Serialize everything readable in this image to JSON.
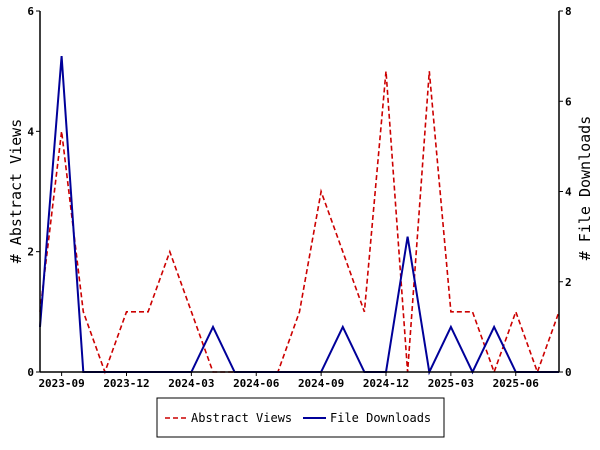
{
  "chart_data": {
    "type": "line",
    "x": [
      "2023-08",
      "2023-09",
      "2023-10",
      "2023-11",
      "2023-12",
      "2024-01",
      "2024-02",
      "2024-03",
      "2024-04",
      "2024-05",
      "2024-06",
      "2024-07",
      "2024-08",
      "2024-09",
      "2024-10",
      "2024-11",
      "2024-12",
      "2025-01",
      "2025-02",
      "2025-03",
      "2025-04",
      "2025-05",
      "2025-06",
      "2025-07",
      "2025-08"
    ],
    "x_ticks": [
      "2023-09",
      "2023-12",
      "2024-03",
      "2024-06",
      "2024-09",
      "2024-12",
      "2025-03",
      "2025-06"
    ],
    "series": [
      {
        "name": "Abstract Views",
        "axis": "left",
        "color": "#cc0000",
        "style": "dashed",
        "values": [
          1,
          4,
          1,
          0,
          1,
          1,
          2,
          1,
          0,
          0,
          0,
          0,
          1,
          3,
          2,
          1,
          5,
          0,
          5,
          1,
          1,
          0,
          1,
          0,
          1
        ]
      },
      {
        "name": "File Downloads",
        "axis": "right",
        "color": "#000099",
        "style": "solid",
        "values": [
          1,
          7,
          0,
          0,
          0,
          0,
          0,
          0,
          1,
          0,
          0,
          0,
          0,
          0,
          1,
          0,
          0,
          3,
          0,
          1,
          0,
          1,
          0,
          0,
          0
        ]
      }
    ],
    "ylabel": "# Abstract Views",
    "y2label": "# File Downloads",
    "ylim": [
      0,
      6
    ],
    "y_ticks": [
      0,
      2,
      4,
      6
    ],
    "y2lim": [
      0,
      8
    ],
    "y2_ticks": [
      0,
      2,
      4,
      6,
      8
    ],
    "grid": false,
    "legend_position": "bottom"
  }
}
